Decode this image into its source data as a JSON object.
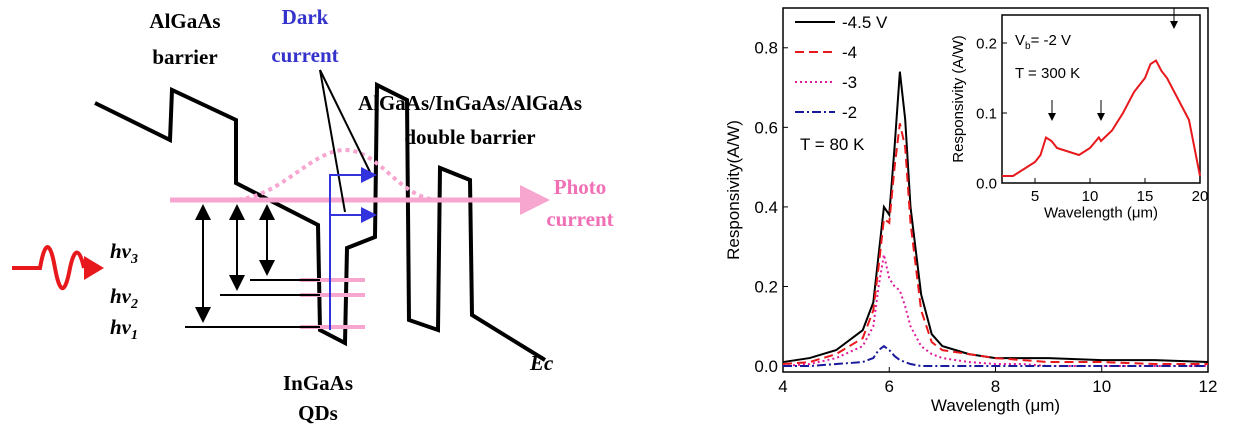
{
  "diagram": {
    "barrier_1": "AlGaAs",
    "barrier_2": "barrier",
    "dark_1": "Dark",
    "dark_2": "current",
    "double_1": "AlGaAs/InGaAs/AlGaAs",
    "double_2": "double barrier",
    "photo_1": "Photo",
    "photo_2": "current",
    "hv3": "hv",
    "hv3_sub": "3",
    "hv2": "hv",
    "hv2_sub": "2",
    "hv1": "hv",
    "hv1_sub": "1",
    "qd_1": "InGaAs",
    "qd_2": "QDs",
    "ec": "Ec"
  },
  "chart_data": [
    {
      "type": "line",
      "x_label": "Wavelength (μm)",
      "y_label": "Responsivity(A/W)",
      "annotation": "T = 80 K",
      "x": [
        4,
        4.5,
        5,
        5.5,
        5.7,
        5.8,
        5.9,
        6.0,
        6.1,
        6.2,
        6.3,
        6.4,
        6.6,
        6.8,
        7,
        7.5,
        8,
        8.5,
        9,
        10,
        11,
        12
      ],
      "series": [
        {
          "name": "-4.5 V",
          "color": "#000000",
          "dash": "",
          "values": [
            0.01,
            0.02,
            0.04,
            0.09,
            0.16,
            0.28,
            0.4,
            0.38,
            0.55,
            0.74,
            0.62,
            0.4,
            0.18,
            0.08,
            0.05,
            0.03,
            0.02,
            0.02,
            0.02,
            0.015,
            0.015,
            0.01
          ]
        },
        {
          "name": "-4",
          "color": "#e8191c",
          "dash": "9 5",
          "values": [
            0.005,
            0.01,
            0.03,
            0.07,
            0.14,
            0.25,
            0.37,
            0.36,
            0.5,
            0.61,
            0.55,
            0.36,
            0.14,
            0.06,
            0.04,
            0.03,
            0.02,
            0.015,
            0.01,
            0.01,
            0.005,
            0.005
          ]
        },
        {
          "name": "-3",
          "color": "#e0189a",
          "dash": "2 3",
          "values": [
            0,
            0.005,
            0.02,
            0.05,
            0.1,
            0.2,
            0.28,
            0.22,
            0.2,
            0.19,
            0.15,
            0.1,
            0.05,
            0.03,
            0.02,
            0.01,
            0.005,
            0.005,
            0,
            0,
            0,
            0
          ]
        },
        {
          "name": "-2",
          "color": "#1a1a9c",
          "dash": "9 3 2 3",
          "values": [
            0,
            0,
            0.005,
            0.01,
            0.02,
            0.04,
            0.05,
            0.04,
            0.025,
            0.015,
            0.01,
            0.005,
            0,
            0,
            0,
            0,
            0,
            0,
            0,
            0,
            0,
            0
          ]
        }
      ],
      "xlim": [
        4,
        12
      ],
      "xticks": [
        4,
        6,
        8,
        10,
        12
      ],
      "ylim": [
        -0.015,
        0.9
      ],
      "yticks": [
        {
          "value": 0,
          "label": "0.0"
        },
        0.2,
        0.4,
        0.6,
        0.8
      ]
    },
    {
      "type": "line",
      "x_label": "Wavelength (μm)",
      "y_label": "Responsivity (A/W)",
      "annotation_v": "V",
      "annotation_sub": "b",
      "annotation_rest": "= -2 V",
      "annotation_t": "T = 300 K",
      "x": [
        2,
        3,
        4,
        5,
        5.5,
        6,
        6.5,
        7,
        8,
        9,
        10,
        10.8,
        11,
        12,
        13,
        14,
        15,
        15.5,
        16,
        16.5,
        17,
        18,
        19,
        20
      ],
      "series": [
        {
          "color": "#e8191c",
          "values": [
            0.01,
            0.01,
            0.02,
            0.03,
            0.04,
            0.065,
            0.06,
            0.05,
            0.045,
            0.04,
            0.05,
            0.065,
            0.06,
            0.075,
            0.1,
            0.13,
            0.15,
            0.17,
            0.175,
            0.16,
            0.15,
            0.12,
            0.09,
            0.01
          ]
        }
      ],
      "xlim": [
        2,
        20
      ],
      "xticks": [
        5,
        10,
        15,
        20
      ],
      "ylim": [
        0,
        0.24
      ],
      "yticks": [
        {
          "value": 0,
          "label": "0.0"
        },
        0.1,
        0.2
      ]
    }
  ]
}
